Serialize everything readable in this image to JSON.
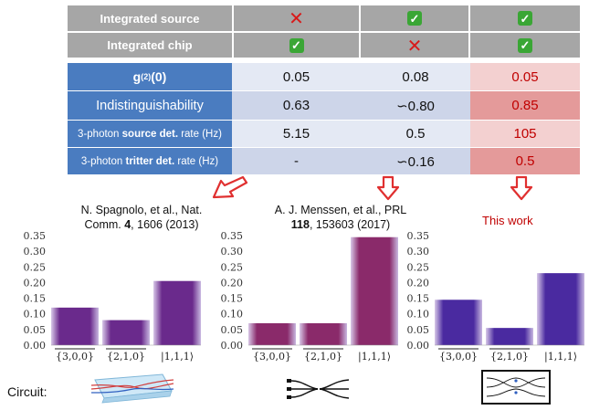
{
  "colors": {
    "grey": "#a6a6a6",
    "blue_label": "#4a7cc0",
    "row_light": "#d9e1f0",
    "row_dark": "#c4cfe5",
    "pink_light": "#efb8b8",
    "pink_dark": "#e69595",
    "accent_red": "#c00000",
    "check_green": "#3aa635",
    "cross_red": "#d81a1a"
  },
  "table": {
    "integrated_source": {
      "label": "Integrated source",
      "values": [
        "cross",
        "check",
        "check"
      ]
    },
    "integrated_chip": {
      "label": "Integrated chip",
      "values": [
        "check",
        "cross",
        "check"
      ]
    },
    "g2": {
      "label_main": "g",
      "label_sup": "(2)",
      "label_tail": "(0)",
      "values": [
        "0.05",
        "0.08",
        "0.05"
      ]
    },
    "indist": {
      "label": "Indistinguishability",
      "values": [
        "0.63",
        "∽0.80",
        "0.85"
      ]
    },
    "source_rate": {
      "label_pre": "3-photon ",
      "label_bold": "source det.",
      "label_post": " rate (Hz)",
      "values": [
        "5.15",
        "0.5",
        "105"
      ]
    },
    "tritter_rate": {
      "label_pre": "3-photon ",
      "label_bold": "tritter det.",
      "label_post": " rate (Hz)",
      "values": [
        "-",
        "∽0.16",
        "0.5"
      ]
    }
  },
  "refs": {
    "spagnolo": {
      "line1": "N. Spagnolo, et al., Nat.",
      "line2_pre": "Comm. ",
      "line2_bold": "4",
      "line2_post": ", 1606 (2013)"
    },
    "menssen": {
      "line1": "A. J. Menssen, et al., PRL",
      "line2_bold": "118",
      "line2_post": ", 153603 (2017)"
    },
    "this_work": "This work"
  },
  "circuit_label": "Circuit:",
  "chart_data": [
    {
      "type": "bar",
      "name": "spagnolo",
      "categories": [
        "{3,0,0}",
        "{2,1,0}",
        "|1,1,1⟩"
      ],
      "values": [
        0.12,
        0.08,
        0.205
      ],
      "ylim": [
        0,
        0.35
      ],
      "yticks": [
        "0.00",
        "0.05",
        "0.10",
        "0.15",
        "0.20",
        "0.25",
        "0.30",
        "0.35"
      ],
      "color": "#6a2a8c"
    },
    {
      "type": "bar",
      "name": "menssen",
      "categories": [
        "{3,0,0}",
        "{2,1,0}",
        "|1,1,1⟩"
      ],
      "values": [
        0.07,
        0.07,
        0.345
      ],
      "ylim": [
        0,
        0.35
      ],
      "yticks": [
        "0.00",
        "0.05",
        "0.10",
        "0.15",
        "0.20",
        "0.25",
        "0.30",
        "0.35"
      ],
      "color": "#8a2a6a"
    },
    {
      "type": "bar",
      "name": "this_work",
      "categories": [
        "{3,0,0}",
        "{2,1,0}",
        "|1,1,1⟩"
      ],
      "values": [
        0.145,
        0.055,
        0.23
      ],
      "ylim": [
        0,
        0.35
      ],
      "yticks": [
        "0.00",
        "0.05",
        "0.10",
        "0.15",
        "0.20",
        "0.25",
        "0.30",
        "0.35"
      ],
      "color": "#4a2aa0"
    }
  ]
}
